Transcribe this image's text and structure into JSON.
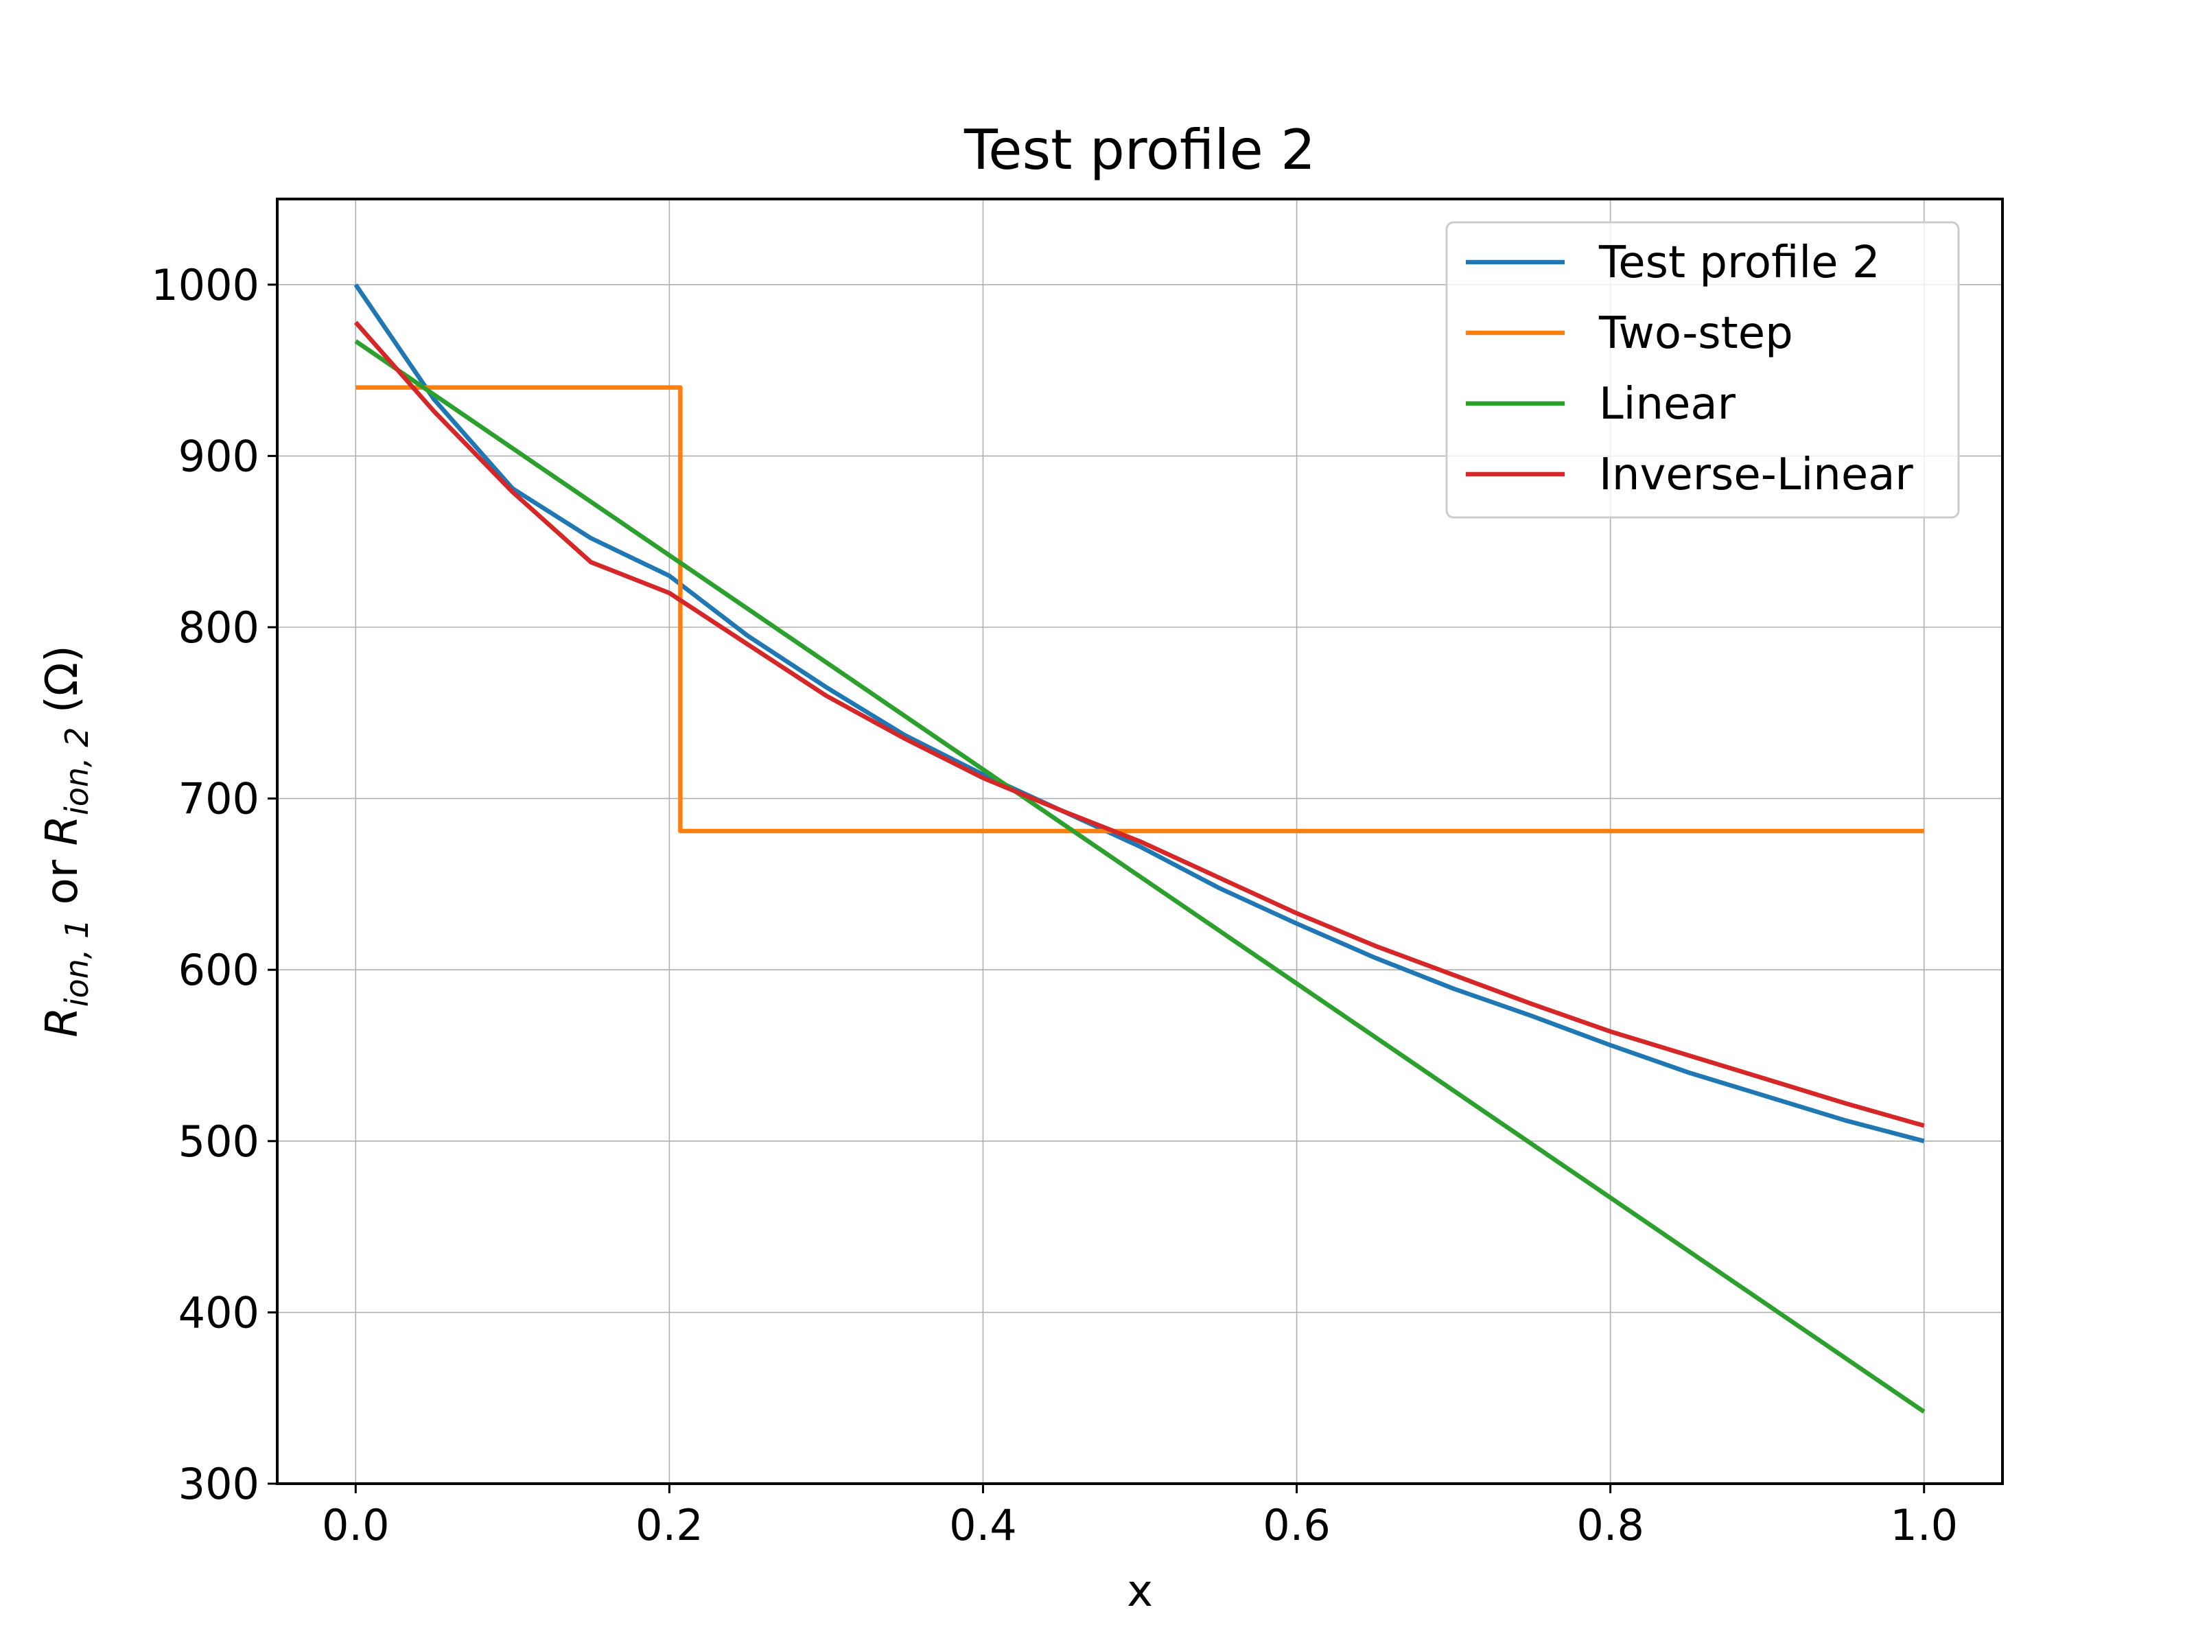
{
  "chart_data": {
    "type": "line",
    "title": "Test profile 2",
    "xlabel": "x",
    "ylabel": {
      "parts": [
        {
          "text": "R",
          "style": "italic"
        },
        {
          "text": "ion, 1",
          "style": "sub"
        },
        {
          "text": " or ",
          "style": "normal"
        },
        {
          "text": "R",
          "style": "italic"
        },
        {
          "text": "ion, 2",
          "style": "sub"
        },
        {
          "text": " (Ω)",
          "style": "normal"
        }
      ]
    },
    "xlim": [
      -0.05,
      1.05
    ],
    "ylim": [
      300,
      1050
    ],
    "xticks": [
      0.0,
      0.2,
      0.4,
      0.6,
      0.8,
      1.0
    ],
    "xtick_labels": [
      "0.0",
      "0.2",
      "0.4",
      "0.6",
      "0.8",
      "1.0"
    ],
    "yticks": [
      300,
      400,
      500,
      600,
      700,
      800,
      900,
      1000
    ],
    "ytick_labels": [
      "300",
      "400",
      "500",
      "600",
      "700",
      "800",
      "900",
      "1000"
    ],
    "grid": true,
    "legend_position": "top-right",
    "series": [
      {
        "name": "Test profile 2",
        "color": "#1f77b4",
        "x": [
          0.0,
          0.05,
          0.1,
          0.15,
          0.2,
          0.25,
          0.3,
          0.35,
          0.4,
          0.45,
          0.5,
          0.55,
          0.6,
          0.65,
          0.7,
          0.75,
          0.8,
          0.85,
          0.9,
          0.95,
          1.0
        ],
        "y": [
          1000,
          933,
          881,
          852,
          830,
          795,
          765,
          737,
          714,
          693,
          672,
          648,
          627,
          607,
          589,
          573,
          556,
          540,
          526,
          512,
          500
        ]
      },
      {
        "name": "Two-step",
        "color": "#ff7f0e",
        "x": [
          0.0,
          0.207,
          0.207,
          1.0
        ],
        "y": [
          940,
          940,
          681,
          681
        ]
      },
      {
        "name": "Linear",
        "color": "#2ca02c",
        "x": [
          0.0,
          1.0
        ],
        "y": [
          967,
          342
        ]
      },
      {
        "name": "Inverse-Linear",
        "color": "#d62728",
        "x": [
          0.0,
          0.05,
          0.1,
          0.15,
          0.2,
          0.25,
          0.3,
          0.35,
          0.4,
          0.45,
          0.5,
          0.55,
          0.6,
          0.65,
          0.7,
          0.75,
          0.8,
          0.85,
          0.9,
          0.95,
          1.0
        ],
        "y": [
          978,
          926,
          879,
          838,
          820,
          790,
          760,
          735,
          712,
          693,
          675,
          654,
          633,
          614,
          597,
          580,
          564,
          550,
          536,
          522,
          509
        ]
      }
    ]
  }
}
